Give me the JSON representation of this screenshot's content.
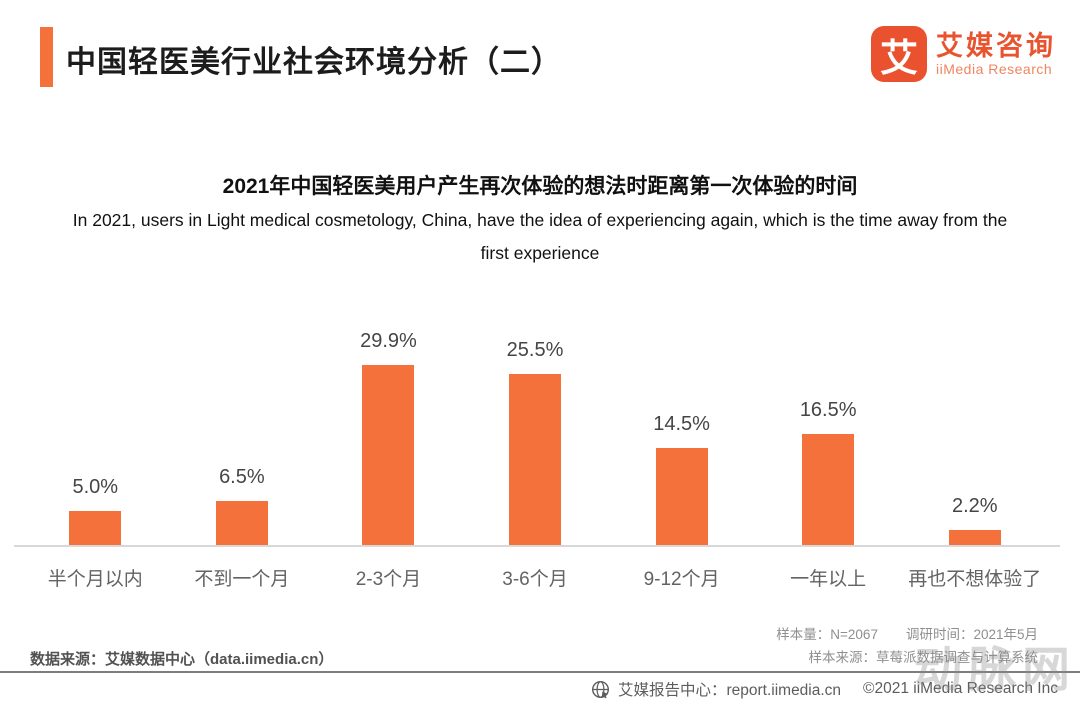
{
  "header": {
    "title": "中国轻医美行业社会环境分析（二）",
    "logo": {
      "glyph": "艾",
      "name_cn": "艾媒咨询",
      "name_en": "iiMedia Research"
    }
  },
  "chart_data": {
    "type": "bar",
    "title": "2021年中国轻医美用户产生再次体验的想法时距离第一次体验的时间",
    "subtitle": "In 2021, users in Light medical cosmetology, China, have the idea of experiencing again, which is the time away from the first experience",
    "categories": [
      "半个月以内",
      "不到一个月",
      "2-3个月",
      "3-6个月",
      "9-12个月",
      "一年以上",
      "再也不想体验了"
    ],
    "values": [
      5.0,
      6.5,
      29.9,
      25.5,
      14.5,
      16.5,
      2.2
    ],
    "value_labels": [
      "5.0%",
      "6.5%",
      "29.9%",
      "25.5%",
      "14.5%",
      "16.5%",
      "2.2%"
    ],
    "xlabel": "",
    "ylabel": "",
    "ylim": [
      0,
      32
    ],
    "grid": false,
    "legend": "none",
    "bar_color": "#F4713C"
  },
  "footnotes": {
    "data_source": "数据来源：艾媒数据中心（data.iimedia.cn）",
    "sample_size": "样本量：N=2067",
    "survey_time": "调研时间：2021年5月",
    "sample_source": "样本来源：草莓派数据调查与计算系统"
  },
  "footer": {
    "report_center": "艾媒报告中心：report.iimedia.cn",
    "copyright": "©2021  iiMedia Research  Inc",
    "globe_icon": "globe-cursor"
  },
  "watermark": "动脉网",
  "colors": {
    "accent_orange": "#F4713C",
    "brand_orange": "#EA512E",
    "bar_orange": "#F4713C",
    "axis_gray": "#d8d8d8",
    "divider_gray": "#7d7d7d"
  }
}
